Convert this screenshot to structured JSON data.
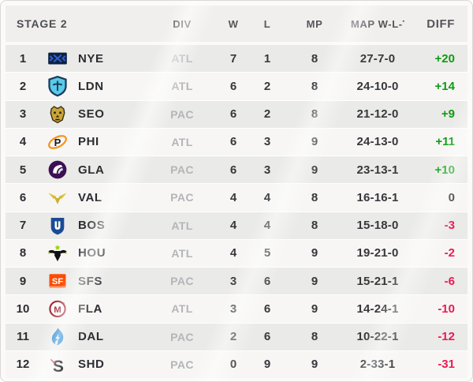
{
  "table": {
    "title": "STAGE 2",
    "columns": {
      "div": "DIV",
      "w": "W",
      "l": "L",
      "mp": "MP",
      "map": "MAP W-L-T",
      "diff": "DIFF"
    }
  },
  "diff_colors": {
    "positive": "#0f9b13",
    "negative": "#ea1a52",
    "neutral": "#2e2f33"
  },
  "standings": [
    {
      "rank": "1",
      "icon": "nye-logo",
      "team": "NYE",
      "div": "ATL",
      "w": "7",
      "l": "1",
      "mp": "8",
      "map": "27-7-0",
      "diff": "+20",
      "diff_state": "positive"
    },
    {
      "rank": "2",
      "icon": "ldn-logo",
      "team": "LDN",
      "div": "ATL",
      "w": "6",
      "l": "2",
      "mp": "8",
      "map": "24-10-0",
      "diff": "+14",
      "diff_state": "positive"
    },
    {
      "rank": "3",
      "icon": "seo-logo",
      "team": "SEO",
      "div": "PAC",
      "w": "6",
      "l": "2",
      "mp": "8",
      "map": "21-12-0",
      "diff": "+9",
      "diff_state": "positive"
    },
    {
      "rank": "4",
      "icon": "phi-logo",
      "team": "PHI",
      "div": "ATL",
      "w": "6",
      "l": "3",
      "mp": "9",
      "map": "24-13-0",
      "diff": "+11",
      "diff_state": "positive"
    },
    {
      "rank": "5",
      "icon": "gla-logo",
      "team": "GLA",
      "div": "PAC",
      "w": "6",
      "l": "3",
      "mp": "9",
      "map": "23-13-1",
      "diff": "+10",
      "diff_state": "positive"
    },
    {
      "rank": "6",
      "icon": "val-logo",
      "team": "VAL",
      "div": "PAC",
      "w": "4",
      "l": "4",
      "mp": "8",
      "map": "16-16-1",
      "diff": "0",
      "diff_state": "neutral"
    },
    {
      "rank": "7",
      "icon": "bos-logo",
      "team": "BOS",
      "div": "ATL",
      "w": "4",
      "l": "4",
      "mp": "8",
      "map": "15-18-0",
      "diff": "-3",
      "diff_state": "negative"
    },
    {
      "rank": "8",
      "icon": "hou-logo",
      "team": "HOU",
      "div": "ATL",
      "w": "4",
      "l": "5",
      "mp": "9",
      "map": "19-21-0",
      "diff": "-2",
      "diff_state": "negative"
    },
    {
      "rank": "9",
      "icon": "sfs-logo",
      "team": "SFS",
      "div": "PAC",
      "w": "3",
      "l": "6",
      "mp": "9",
      "map": "15-21-1",
      "diff": "-6",
      "diff_state": "negative"
    },
    {
      "rank": "10",
      "icon": "fla-logo",
      "team": "FLA",
      "div": "ATL",
      "w": "3",
      "l": "6",
      "mp": "9",
      "map": "14-24-1",
      "diff": "-10",
      "diff_state": "negative"
    },
    {
      "rank": "11",
      "icon": "dal-logo",
      "team": "DAL",
      "div": "PAC",
      "w": "2",
      "l": "6",
      "mp": "8",
      "map": "10-22-1",
      "diff": "-12",
      "diff_state": "negative"
    },
    {
      "rank": "12",
      "icon": "shd-logo",
      "team": "SHD",
      "div": "PAC",
      "w": "0",
      "l": "9",
      "mp": "9",
      "map": "2-33-1",
      "diff": "-31",
      "diff_state": "negative"
    }
  ]
}
